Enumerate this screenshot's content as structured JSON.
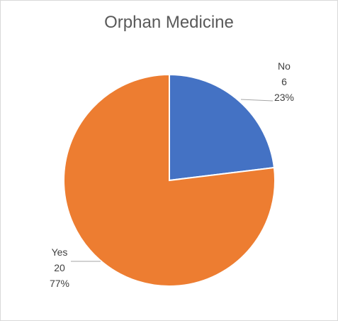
{
  "chart_data": {
    "type": "pie",
    "title": "Orphan Medicine",
    "slices": [
      {
        "label": "No",
        "value": 6,
        "percent": "23%",
        "color": "#4472C4"
      },
      {
        "label": "Yes",
        "value": 20,
        "percent": "77%",
        "color": "#ED7D31"
      }
    ],
    "start_angle_deg": 0,
    "direction": "clockwise",
    "data_labels": "outside with leader lines"
  }
}
